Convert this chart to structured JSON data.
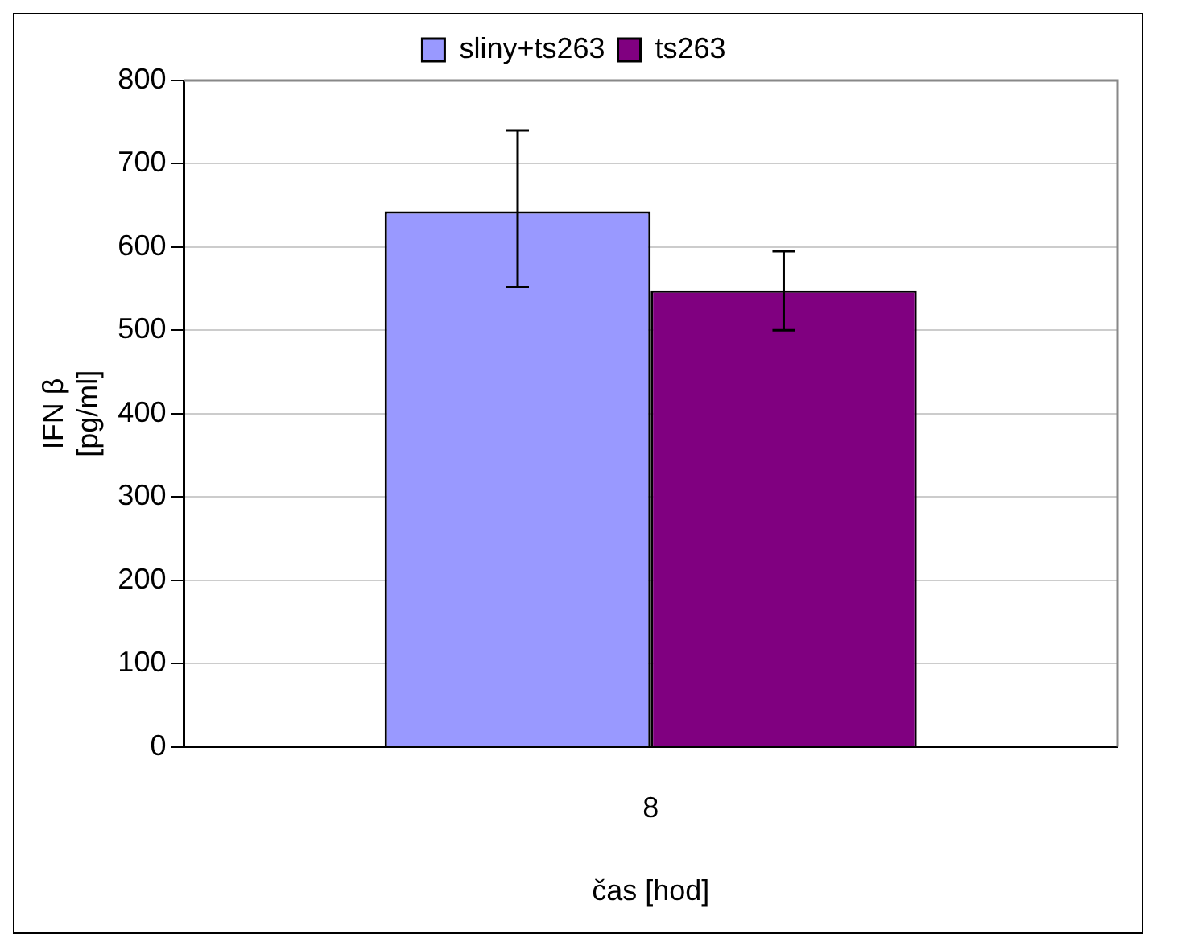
{
  "chart_data": {
    "type": "bar",
    "xlabel": "čas [hod]",
    "ylabel": "IFN β\n[pg/ml]",
    "categories": [
      "8"
    ],
    "series": [
      {
        "name": "sliny+ts263",
        "color": "#9999ff",
        "values": [
          643
        ],
        "errors": [
          [
            552,
            740
          ]
        ]
      },
      {
        "name": "ts263",
        "color": "#800080",
        "values": [
          548
        ],
        "errors": [
          [
            500,
            595
          ]
        ]
      }
    ],
    "ylim": [
      0,
      800
    ],
    "yticks": [
      0,
      100,
      200,
      300,
      400,
      500,
      600,
      700,
      800
    ],
    "grid": "y",
    "legend": "top"
  }
}
